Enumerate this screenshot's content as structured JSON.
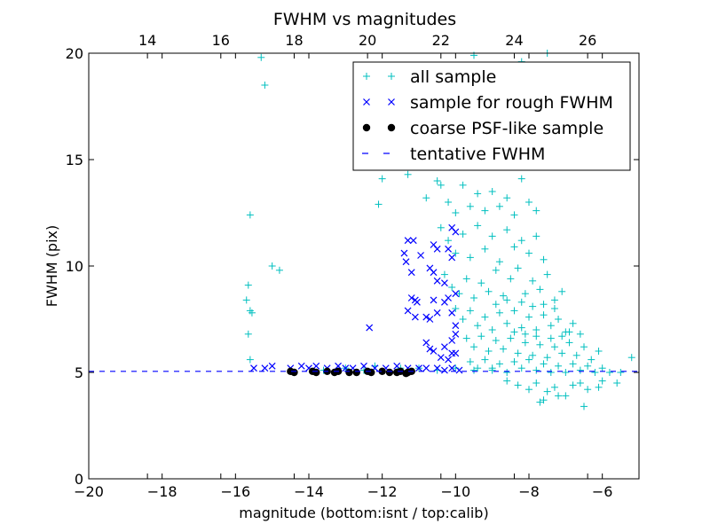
{
  "chart_data": {
    "type": "scatter",
    "title": "FWHM vs magnitudes",
    "xlabel": "magnitude (bottom:isnt / top:calib)",
    "ylabel": "FWHM (pix)",
    "xlim": [
      -20,
      -5
    ],
    "ylim": [
      0,
      20
    ],
    "top_xlim": [
      12.4,
      27.4
    ],
    "x_ticks": [
      -20,
      -18,
      -16,
      -14,
      -12,
      -10,
      -8,
      -6
    ],
    "x_tick_labels": [
      "−20",
      "−18",
      "−16",
      "−14",
      "−12",
      "−10",
      "−8",
      "−6"
    ],
    "y_ticks": [
      0,
      5,
      10,
      15,
      20
    ],
    "y_tick_labels": [
      "0",
      "5",
      "10",
      "15",
      "20"
    ],
    "top_ticks": [
      14,
      16,
      18,
      20,
      22,
      24,
      26
    ],
    "top_tick_labels": [
      "14",
      "16",
      "18",
      "20",
      "22",
      "24",
      "26"
    ],
    "legend_position": "top-right",
    "tentative_fwhm": 5.05,
    "series": [
      {
        "name": "all sample",
        "marker": "plus",
        "color": "#00bfbf",
        "points": [
          [
            -15.3,
            19.8
          ],
          [
            -15.2,
            18.5
          ],
          [
            -15.6,
            12.4
          ],
          [
            -15.0,
            10.0
          ],
          [
            -14.8,
            9.8
          ],
          [
            -15.65,
            9.1
          ],
          [
            -15.7,
            8.4
          ],
          [
            -15.6,
            7.9
          ],
          [
            -15.55,
            7.8
          ],
          [
            -15.65,
            6.8
          ],
          [
            -15.6,
            5.6
          ],
          [
            -12.0,
            14.1
          ],
          [
            -12.1,
            12.9
          ],
          [
            -11.3,
            14.3
          ],
          [
            -11.0,
            15.2
          ],
          [
            -10.6,
            15.7
          ],
          [
            -10.3,
            14.7
          ],
          [
            -10.5,
            14.0
          ],
          [
            -10.8,
            13.2
          ],
          [
            -10.4,
            13.8
          ],
          [
            -10.2,
            13.0
          ],
          [
            -10.0,
            12.5
          ],
          [
            -9.8,
            13.8
          ],
          [
            -9.6,
            12.8
          ],
          [
            -9.4,
            13.4
          ],
          [
            -9.2,
            12.6
          ],
          [
            -9.0,
            13.5
          ],
          [
            -8.8,
            12.8
          ],
          [
            -8.6,
            13.2
          ],
          [
            -8.4,
            12.4
          ],
          [
            -8.2,
            14.1
          ],
          [
            -8.0,
            13.0
          ],
          [
            -7.8,
            12.6
          ],
          [
            -9.5,
            19.9
          ],
          [
            -8.2,
            19.6
          ],
          [
            -7.5,
            20.0
          ],
          [
            -9.0,
            18.9
          ],
          [
            -8.5,
            17.6
          ],
          [
            -9.2,
            16.4
          ],
          [
            -8.0,
            16.0
          ],
          [
            -7.8,
            15.4
          ],
          [
            -9.6,
            17.0
          ],
          [
            -8.8,
            15.8
          ],
          [
            -8.3,
            15.0
          ],
          [
            -10.4,
            11.8
          ],
          [
            -10.2,
            11.2
          ],
          [
            -10.0,
            10.6
          ],
          [
            -9.8,
            11.5
          ],
          [
            -9.6,
            10.4
          ],
          [
            -9.4,
            11.9
          ],
          [
            -9.2,
            10.8
          ],
          [
            -9.0,
            11.4
          ],
          [
            -8.8,
            10.2
          ],
          [
            -8.6,
            11.7
          ],
          [
            -8.4,
            10.9
          ],
          [
            -8.2,
            11.2
          ],
          [
            -8.0,
            10.6
          ],
          [
            -7.8,
            11.4
          ],
          [
            -7.6,
            10.3
          ],
          [
            -10.3,
            9.6
          ],
          [
            -10.1,
            9.0
          ],
          [
            -9.9,
            8.7
          ],
          [
            -9.7,
            9.4
          ],
          [
            -9.5,
            8.5
          ],
          [
            -9.3,
            9.2
          ],
          [
            -9.1,
            8.8
          ],
          [
            -8.9,
            9.8
          ],
          [
            -8.7,
            8.6
          ],
          [
            -8.5,
            9.4
          ],
          [
            -8.3,
            9.9
          ],
          [
            -8.1,
            8.7
          ],
          [
            -7.9,
            9.3
          ],
          [
            -7.7,
            8.9
          ],
          [
            -7.5,
            9.6
          ],
          [
            -7.3,
            8.4
          ],
          [
            -7.1,
            8.8
          ],
          [
            -10.0,
            8.0
          ],
          [
            -9.8,
            7.5
          ],
          [
            -9.6,
            7.9
          ],
          [
            -9.4,
            7.2
          ],
          [
            -9.2,
            7.6
          ],
          [
            -9.0,
            7.0
          ],
          [
            -8.8,
            7.8
          ],
          [
            -8.6,
            7.3
          ],
          [
            -8.4,
            7.9
          ],
          [
            -8.2,
            7.1
          ],
          [
            -8.0,
            7.6
          ],
          [
            -7.8,
            7.0
          ],
          [
            -7.6,
            7.7
          ],
          [
            -7.4,
            7.2
          ],
          [
            -7.2,
            7.5
          ],
          [
            -7.0,
            6.9
          ],
          [
            -6.8,
            7.3
          ],
          [
            -6.6,
            6.8
          ],
          [
            -9.7,
            6.6
          ],
          [
            -9.5,
            6.2
          ],
          [
            -9.3,
            6.7
          ],
          [
            -9.1,
            6.0
          ],
          [
            -8.9,
            6.5
          ],
          [
            -8.7,
            6.1
          ],
          [
            -8.5,
            6.6
          ],
          [
            -8.3,
            5.9
          ],
          [
            -8.1,
            6.4
          ],
          [
            -7.9,
            5.8
          ],
          [
            -7.7,
            6.3
          ],
          [
            -7.5,
            5.7
          ],
          [
            -7.3,
            6.2
          ],
          [
            -7.1,
            5.9
          ],
          [
            -6.9,
            6.4
          ],
          [
            -6.7,
            5.8
          ],
          [
            -6.5,
            6.2
          ],
          [
            -6.3,
            5.6
          ],
          [
            -6.1,
            6.0
          ],
          [
            -9.6,
            5.5
          ],
          [
            -9.4,
            5.2
          ],
          [
            -9.2,
            5.6
          ],
          [
            -9.0,
            5.1
          ],
          [
            -8.8,
            5.4
          ],
          [
            -8.6,
            5.0
          ],
          [
            -8.4,
            5.5
          ],
          [
            -8.2,
            5.2
          ],
          [
            -8.0,
            5.6
          ],
          [
            -7.8,
            5.1
          ],
          [
            -7.6,
            5.4
          ],
          [
            -7.4,
            5.0
          ],
          [
            -7.2,
            5.3
          ],
          [
            -7.0,
            5.0
          ],
          [
            -6.8,
            5.4
          ],
          [
            -6.6,
            5.1
          ],
          [
            -6.4,
            5.3
          ],
          [
            -6.2,
            5.0
          ],
          [
            -6.0,
            5.2
          ],
          [
            -5.8,
            5.0
          ],
          [
            -8.6,
            4.6
          ],
          [
            -8.3,
            4.4
          ],
          [
            -8.0,
            4.2
          ],
          [
            -7.8,
            4.5
          ],
          [
            -7.5,
            4.1
          ],
          [
            -7.3,
            4.3
          ],
          [
            -7.0,
            3.9
          ],
          [
            -6.8,
            4.4
          ],
          [
            -6.6,
            4.5
          ],
          [
            -6.4,
            4.2
          ],
          [
            -6.1,
            4.3
          ],
          [
            -7.7,
            3.6
          ],
          [
            -7.6,
            3.7
          ],
          [
            -7.2,
            3.9
          ],
          [
            -6.5,
            3.4
          ],
          [
            -5.5,
            5.0
          ],
          [
            -5.2,
            5.7
          ],
          [
            -5.6,
            4.5
          ],
          [
            -6.0,
            4.6
          ],
          [
            -13.6,
            5.1
          ],
          [
            -13.0,
            5.2
          ],
          [
            -12.5,
            5.1
          ],
          [
            -12.2,
            5.3
          ],
          [
            -11.5,
            5.2
          ],
          [
            -11.0,
            5.2
          ],
          [
            -10.5,
            5.1
          ],
          [
            -10.0,
            5.2
          ],
          [
            -9.5,
            5.1
          ],
          [
            -9.0,
            5.2
          ],
          [
            -8.9,
            8.2
          ],
          [
            -8.6,
            8.4
          ],
          [
            -8.2,
            8.3
          ],
          [
            -7.9,
            8.1
          ],
          [
            -7.6,
            8.2
          ],
          [
            -7.3,
            8.0
          ],
          [
            -8.4,
            6.9
          ],
          [
            -8.1,
            6.8
          ],
          [
            -7.8,
            6.7
          ],
          [
            -7.4,
            6.6
          ],
          [
            -7.1,
            6.7
          ],
          [
            -6.9,
            6.9
          ]
        ]
      },
      {
        "name": "sample for rough FWHM",
        "marker": "cross",
        "color": "#0000ff",
        "points": [
          [
            -15.5,
            5.2
          ],
          [
            -15.2,
            5.2
          ],
          [
            -15.0,
            5.3
          ],
          [
            -14.5,
            5.2
          ],
          [
            -14.2,
            5.3
          ],
          [
            -14.0,
            5.2
          ],
          [
            -13.8,
            5.3
          ],
          [
            -13.5,
            5.2
          ],
          [
            -13.2,
            5.3
          ],
          [
            -13.0,
            5.2
          ],
          [
            -12.8,
            5.2
          ],
          [
            -12.5,
            5.3
          ],
          [
            -12.2,
            5.2
          ],
          [
            -11.9,
            5.2
          ],
          [
            -11.6,
            5.3
          ],
          [
            -11.3,
            5.2
          ],
          [
            -11.0,
            5.2
          ],
          [
            -10.8,
            5.2
          ],
          [
            -10.5,
            5.2
          ],
          [
            -10.3,
            5.1
          ],
          [
            -10.1,
            5.2
          ],
          [
            -9.9,
            5.1
          ],
          [
            -12.35,
            7.1
          ],
          [
            -11.3,
            11.2
          ],
          [
            -11.15,
            11.2
          ],
          [
            -11.4,
            10.6
          ],
          [
            -10.95,
            10.5
          ],
          [
            -11.35,
            10.2
          ],
          [
            -11.2,
            9.7
          ],
          [
            -11.2,
            8.5
          ],
          [
            -11.1,
            8.4
          ],
          [
            -11.05,
            8.3
          ],
          [
            -11.3,
            7.9
          ],
          [
            -11.1,
            7.6
          ],
          [
            -10.6,
            11.0
          ],
          [
            -10.5,
            10.8
          ],
          [
            -10.7,
            9.9
          ],
          [
            -10.6,
            9.7
          ],
          [
            -10.5,
            9.3
          ],
          [
            -10.6,
            8.4
          ],
          [
            -10.8,
            7.6
          ],
          [
            -10.7,
            7.5
          ],
          [
            -10.8,
            6.4
          ],
          [
            -10.6,
            6.0
          ],
          [
            -10.4,
            5.7
          ],
          [
            -10.2,
            10.8
          ],
          [
            -10.1,
            10.4
          ],
          [
            -10.3,
            9.2
          ],
          [
            -10.2,
            8.5
          ],
          [
            -10.1,
            7.8
          ],
          [
            -10.0,
            7.2
          ],
          [
            -10.1,
            6.5
          ],
          [
            -10.0,
            5.9
          ],
          [
            -10.2,
            5.6
          ],
          [
            -10.1,
            5.9
          ],
          [
            -10.0,
            6.8
          ],
          [
            -10.0,
            11.6
          ],
          [
            -10.1,
            11.8
          ],
          [
            -10.3,
            8.3
          ],
          [
            -10.5,
            7.8
          ],
          [
            -10.0,
            8.7
          ],
          [
            -10.3,
            6.2
          ],
          [
            -10.7,
            6.1
          ]
        ]
      },
      {
        "name": "coarse PSF-like sample",
        "marker": "dot",
        "color": "#000000",
        "points": [
          [
            -14.5,
            5.05
          ],
          [
            -14.4,
            5.0
          ],
          [
            -13.9,
            5.05
          ],
          [
            -13.8,
            5.0
          ],
          [
            -13.5,
            5.05
          ],
          [
            -13.3,
            5.0
          ],
          [
            -13.2,
            5.05
          ],
          [
            -12.9,
            5.0
          ],
          [
            -12.7,
            5.0
          ],
          [
            -12.4,
            5.05
          ],
          [
            -12.3,
            5.0
          ],
          [
            -12.0,
            5.05
          ],
          [
            -11.8,
            5.0
          ],
          [
            -11.6,
            5.0
          ],
          [
            -11.5,
            5.05
          ],
          [
            -11.3,
            5.0
          ],
          [
            -11.2,
            5.05
          ],
          [
            -11.35,
            4.95
          ]
        ]
      },
      {
        "name": "tentative FWHM",
        "marker": "dashed-line",
        "color": "#0000ff"
      }
    ]
  }
}
